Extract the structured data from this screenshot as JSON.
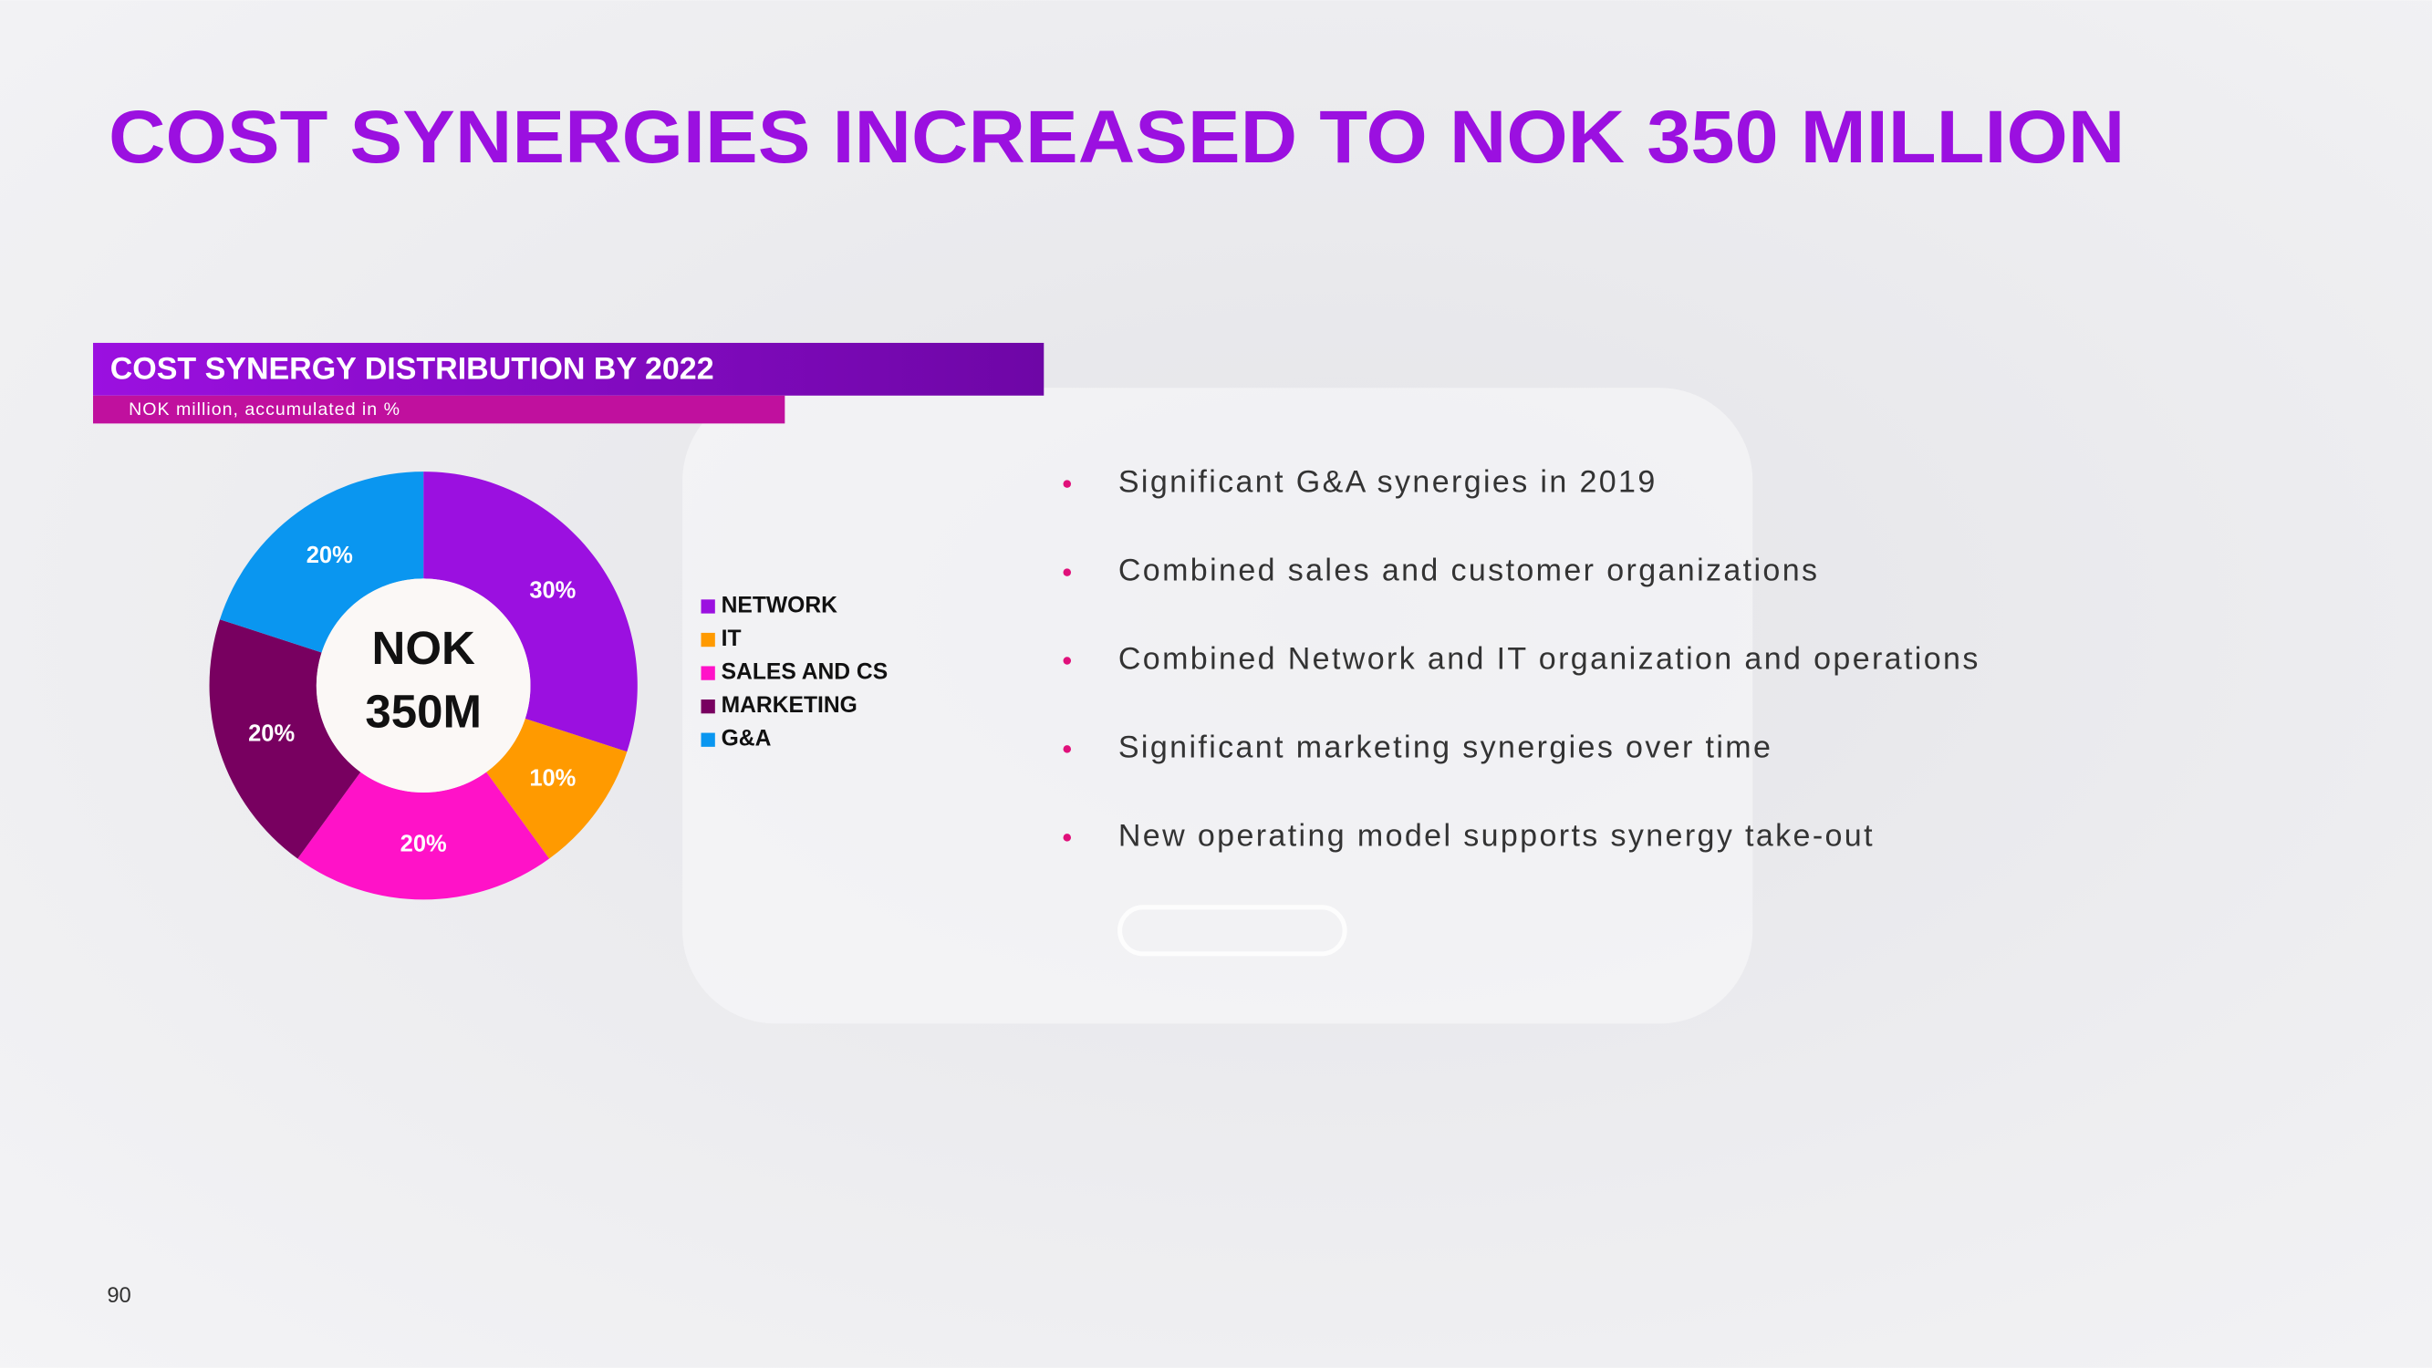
{
  "slide": {
    "title": "COST SYNERGIES INCREASED TO NOK 350 MILLION",
    "bullets": [
      "Significant G&A synergies in 2019",
      "Combined sales and customer organizations",
      "Combined Network and IT organization and operations",
      "Significant marketing synergies over time",
      "New operating model supports synergy take-out"
    ],
    "page_number": "90"
  },
  "chart_data": {
    "type": "donut",
    "title": "COST SYNERGY DISTRIBUTION BY 2022",
    "subtitle": "NOK million, accumulated in %",
    "center_label": [
      "NOK",
      "350M"
    ],
    "categories": [
      "NETWORK",
      "IT",
      "SALES AND CS",
      "MARKETING",
      "G&A"
    ],
    "values": [
      30,
      10,
      20,
      20,
      20
    ],
    "value_labels": [
      "30%",
      "10%",
      "20%",
      "20%",
      "20%"
    ],
    "colors": [
      "#9b10e0",
      "#ff9a00",
      "#ff12c8",
      "#780060",
      "#0a96f0"
    ]
  }
}
